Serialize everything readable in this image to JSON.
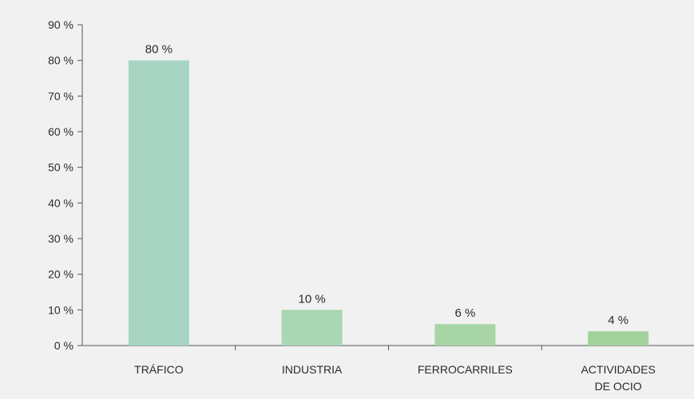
{
  "chart_data": {
    "type": "bar",
    "categories": [
      [
        "TRÁFICO"
      ],
      [
        "INDUSTRIA"
      ],
      [
        "FERROCARRILES"
      ],
      [
        "ACTIVIDADES",
        "DE OCIO"
      ]
    ],
    "values": [
      80,
      10,
      6,
      4
    ],
    "value_labels": [
      "80 %",
      "10 %",
      "6 %",
      "4 %"
    ],
    "bar_colors": [
      "#a8d5c3",
      "#a9d6b3",
      "#a7d5a6",
      "#a3d39c"
    ],
    "y_ticks": [
      0,
      10,
      20,
      30,
      40,
      50,
      60,
      70,
      80,
      90
    ],
    "y_tick_labels": [
      "0 %",
      "10 %",
      "20 %",
      "30 %",
      "40 %",
      "50 %",
      "60 %",
      "70 %",
      "80 %",
      "90 %"
    ],
    "ylim": [
      0,
      90
    ],
    "title": "",
    "xlabel": "",
    "ylabel": "",
    "grid": false,
    "background_color": "#f1f1f1",
    "axis_color": "#555555"
  }
}
